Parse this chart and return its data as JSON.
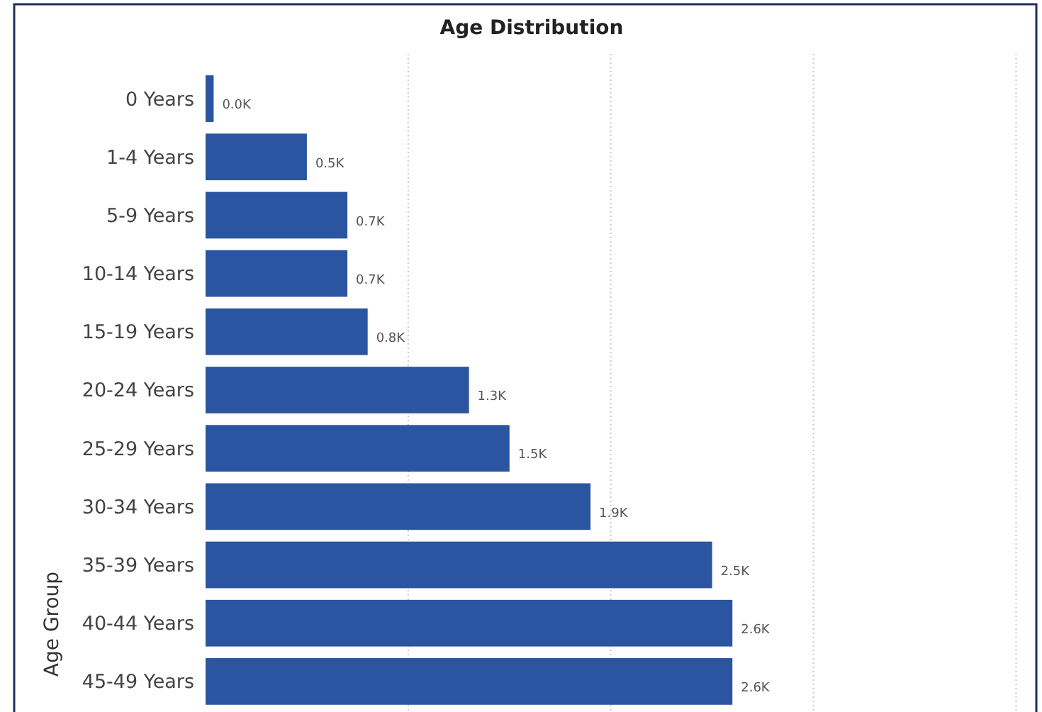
{
  "chart_data": {
    "type": "bar",
    "orientation": "horizontal",
    "title": "Age Distribution",
    "ylabel": "Age Group",
    "categories": [
      "0 Years",
      "1-4 Years",
      "5-9 Years",
      "10-14 Years",
      "15-19 Years",
      "20-24 Years",
      "25-29 Years",
      "30-34 Years",
      "35-39 Years",
      "40-44 Years",
      "45-49 Years"
    ],
    "values": [
      0.04,
      0.5,
      0.7,
      0.7,
      0.8,
      1.3,
      1.5,
      1.9,
      2.5,
      2.6,
      2.6
    ],
    "value_labels": [
      "0.0K",
      "0.5K",
      "0.7K",
      "0.7K",
      "0.8K",
      "1.3K",
      "1.5K",
      "1.9K",
      "2.5K",
      "2.6K",
      "2.6K"
    ],
    "color": "#2b55a0",
    "xlim": [
      0,
      4.1
    ],
    "xticks": [
      {
        "value": 1,
        "label": null
      },
      {
        "value": 2,
        "label": null
      },
      {
        "value": 3,
        "label": null
      },
      {
        "value": 4,
        "label": null
      }
    ],
    "grid": "x",
    "tick_labels": "y"
  }
}
